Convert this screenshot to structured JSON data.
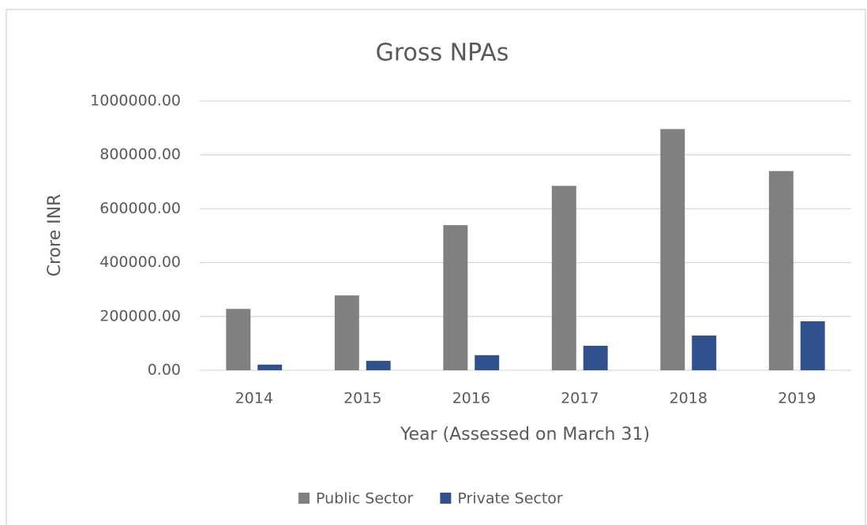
{
  "chart_data": {
    "type": "bar",
    "title": "Gross NPAs",
    "x_label": "Year (Assessed on March 31)",
    "y_label": "Crore INR",
    "categories": [
      "2014",
      "2015",
      "2016",
      "2017",
      "2018",
      "2019"
    ],
    "series": [
      {
        "name": "Public Sector",
        "color": "#808080",
        "values": [
          228000,
          278000,
          539000,
          685000,
          896000,
          740000
        ]
      },
      {
        "name": "Private Sector",
        "color": "#2f528f",
        "values": [
          21000,
          35000,
          56000,
          91000,
          129000,
          182000
        ]
      }
    ],
    "ylim": [
      0,
      1000000
    ],
    "yticks": [
      {
        "value": 0,
        "label": "0.00"
      },
      {
        "value": 200000,
        "label": "200000.00"
      },
      {
        "value": 400000,
        "label": "400000.00"
      },
      {
        "value": 600000,
        "label": "600000.00"
      },
      {
        "value": 800000,
        "label": "800000.00"
      },
      {
        "value": 1000000,
        "label": "1000000.00"
      }
    ],
    "grid": true,
    "legend": "bottom"
  }
}
